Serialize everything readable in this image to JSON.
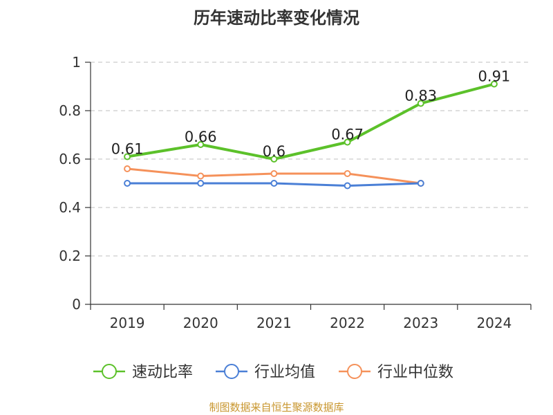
{
  "chart_data": {
    "type": "line",
    "title": "历年速动比率变化情况",
    "categories": [
      "2019",
      "2020",
      "2021",
      "2022",
      "2023",
      "2024"
    ],
    "yticks": [
      "0",
      "0.2",
      "0.4",
      "0.6",
      "0.8",
      "1"
    ],
    "ylim": [
      0,
      1
    ],
    "grid": true,
    "legend_position": "bottom",
    "series": [
      {
        "name": "速动比率",
        "color": "#5cc12a",
        "values": [
          0.61,
          0.66,
          0.6,
          0.67,
          0.83,
          0.91
        ],
        "labels": [
          "0.61",
          "0.66",
          "0.6",
          "0.67",
          "0.83",
          "0.91"
        ]
      },
      {
        "name": "行业均值",
        "color": "#4a7fd6",
        "values": [
          0.5,
          0.5,
          0.5,
          0.49,
          0.5,
          null
        ]
      },
      {
        "name": "行业中位数",
        "color": "#f5915a",
        "values": [
          0.56,
          0.53,
          0.54,
          0.54,
          0.5,
          null
        ]
      }
    ]
  },
  "source": "制图数据来自恒生聚源数据库"
}
